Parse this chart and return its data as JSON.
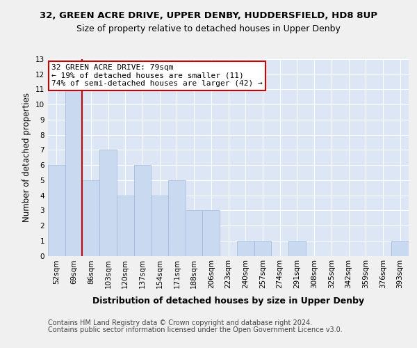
{
  "title1": "32, GREEN ACRE DRIVE, UPPER DENBY, HUDDERSFIELD, HD8 8UP",
  "title2": "Size of property relative to detached houses in Upper Denby",
  "xlabel": "Distribution of detached houses by size in Upper Denby",
  "ylabel": "Number of detached properties",
  "categories": [
    "52sqm",
    "69sqm",
    "86sqm",
    "103sqm",
    "120sqm",
    "137sqm",
    "154sqm",
    "171sqm",
    "188sqm",
    "206sqm",
    "223sqm",
    "240sqm",
    "257sqm",
    "274sqm",
    "291sqm",
    "308sqm",
    "325sqm",
    "342sqm",
    "359sqm",
    "376sqm",
    "393sqm"
  ],
  "values": [
    6,
    11,
    5,
    7,
    4,
    6,
    4,
    5,
    3,
    3,
    0,
    1,
    1,
    0,
    1,
    0,
    0,
    0,
    0,
    0,
    1
  ],
  "bar_color": "#c9d9f0",
  "bar_edge_color": "#a0b8d8",
  "vline_color": "#cc0000",
  "annotation_text": "32 GREEN ACRE DRIVE: 79sqm\n← 19% of detached houses are smaller (11)\n74% of semi-detached houses are larger (42) →",
  "annotation_box_color": "#ffffff",
  "annotation_box_edge": "#cc0000",
  "ylim": [
    0,
    13
  ],
  "yticks": [
    0,
    1,
    2,
    3,
    4,
    5,
    6,
    7,
    8,
    9,
    10,
    11,
    12,
    13
  ],
  "footer1": "Contains HM Land Registry data © Crown copyright and database right 2024.",
  "footer2": "Contains public sector information licensed under the Open Government Licence v3.0.",
  "plot_bg_color": "#dce6f5",
  "fig_bg_color": "#f0f0f0",
  "grid_color": "#ffffff",
  "title1_fontsize": 9.5,
  "title2_fontsize": 9,
  "xlabel_fontsize": 9,
  "ylabel_fontsize": 8.5,
  "tick_fontsize": 7.5,
  "annot_fontsize": 8,
  "footer_fontsize": 7
}
